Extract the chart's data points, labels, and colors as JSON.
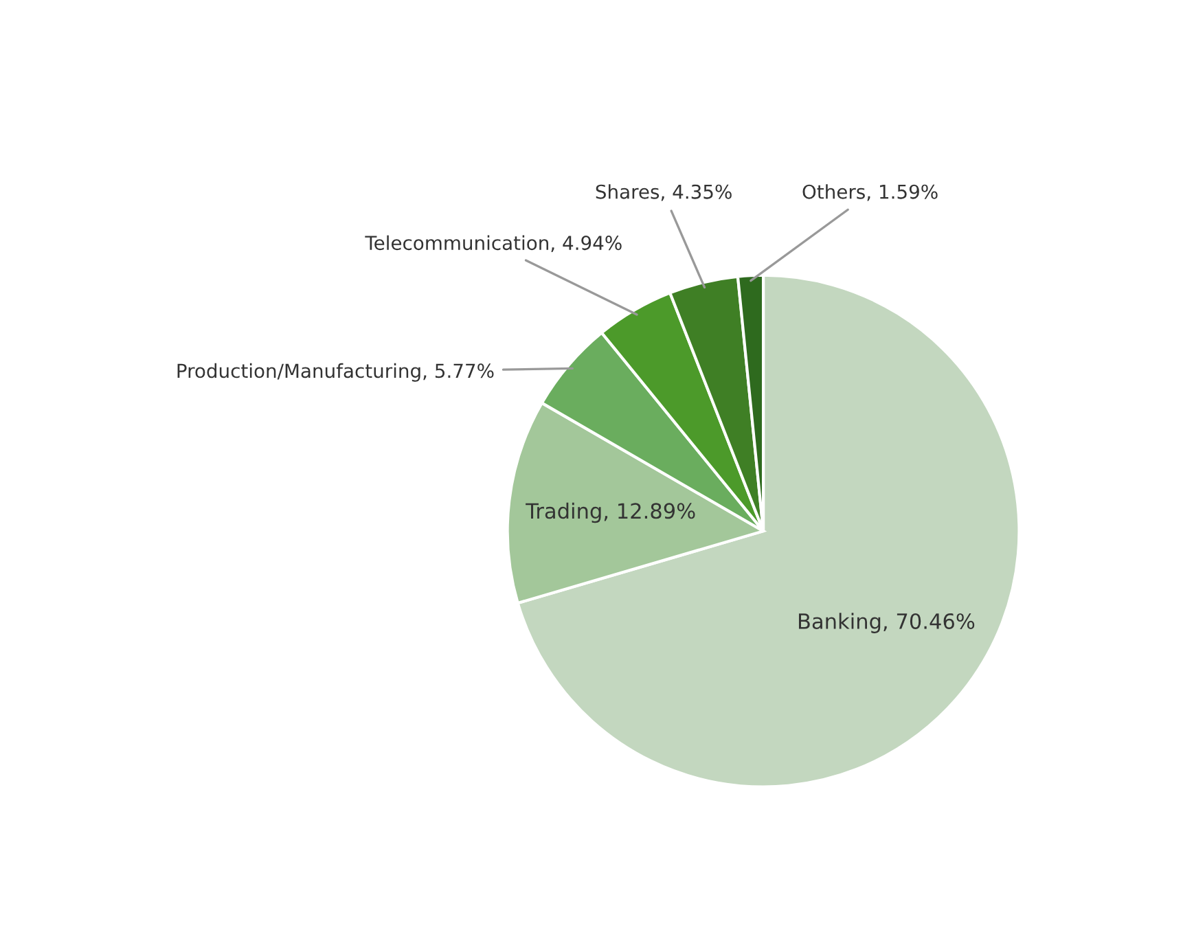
{
  "chart_data": {
    "type": "pie",
    "categories": [
      "Banking",
      "Trading",
      "Production/Manufacturing",
      "Telecommunication",
      "Shares",
      "Others"
    ],
    "values": [
      70.46,
      12.89,
      5.77,
      4.94,
      4.35,
      1.59
    ],
    "value_labels": [
      "70.46%",
      "12.89%",
      "5.77%",
      "4.94%",
      "4.35%",
      "1.59%"
    ],
    "data_labels": true,
    "colors": [
      "#c3d7bf",
      "#a3c79a",
      "#6aad5e",
      "#4c9a2a",
      "#3f7f25",
      "#2e6a1e"
    ]
  }
}
